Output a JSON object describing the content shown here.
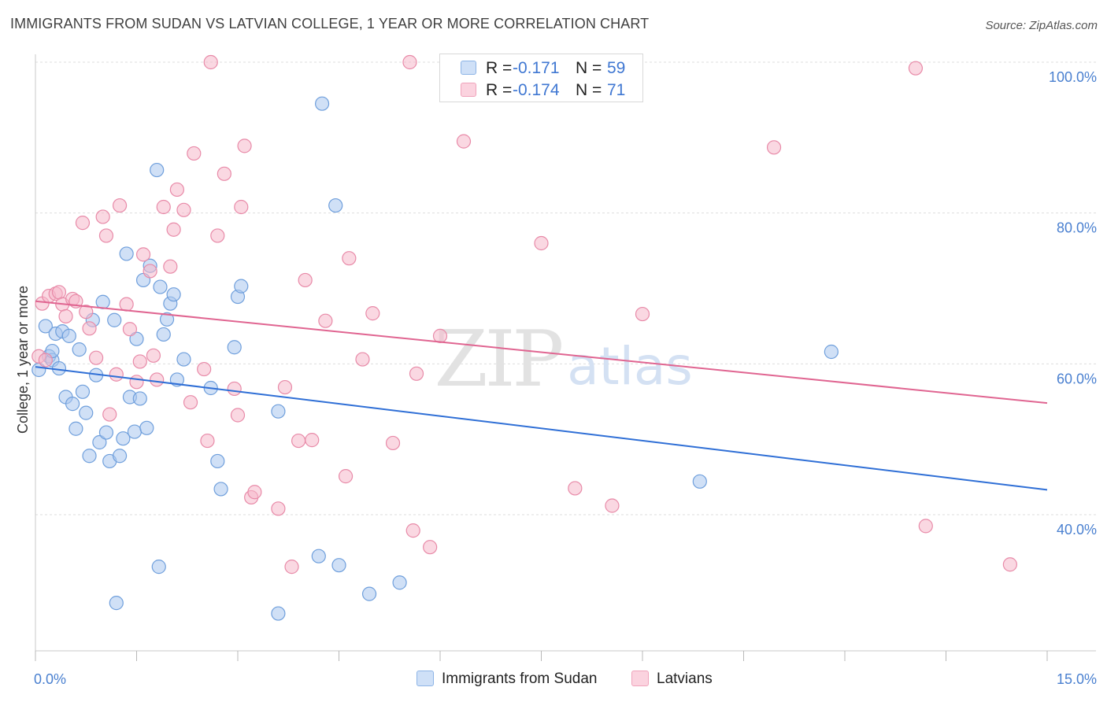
{
  "title": "IMMIGRANTS FROM SUDAN VS LATVIAN COLLEGE, 1 YEAR OR MORE CORRELATION CHART",
  "source": "Source: ZipAtlas.com",
  "watermark": {
    "zip": "ZIP",
    "atlas": "atlas"
  },
  "legend_top": {
    "rows": [
      {
        "r_label": "R =",
        "r_value": "-0.171",
        "n_label": "N =",
        "n_value": "59",
        "color": "#a9c7ee"
      },
      {
        "r_label": "R =",
        "r_value": "-0.174",
        "n_label": "N =",
        "n_value": "71",
        "color": "#f5b8cb"
      }
    ]
  },
  "legend_bottom": [
    {
      "label": "Immigrants from Sudan",
      "color": "#a9c7ee"
    },
    {
      "label": "Latvians",
      "color": "#f5b8cb"
    }
  ],
  "colors": {
    "blue_fill": "#a9c7ee",
    "blue_stroke": "#6f9fdc",
    "blue_line": "#2f6fd6",
    "pink_fill": "#f5b8cb",
    "pink_stroke": "#e88aa8",
    "pink_line": "#e06591",
    "tick_label": "#4a80d0",
    "grid": "#dddddd"
  },
  "chart_data": {
    "type": "scatter",
    "title": "IMMIGRANTS FROM SUDAN VS LATVIAN COLLEGE, 1 YEAR OR MORE CORRELATION CHART",
    "xlabel": "",
    "ylabel": "College, 1 year or more",
    "xlim": [
      0,
      15
    ],
    "ylim": [
      20,
      102
    ],
    "x_tick_labels": [
      "0.0%",
      "15.0%"
    ],
    "y_ticks": [
      40,
      60,
      80,
      100
    ],
    "y_tick_labels": [
      "40.0%",
      "60.0%",
      "80.0%",
      "100.0%"
    ],
    "grid": true,
    "legend_position": "bottom",
    "series": [
      {
        "name": "Immigrants from Sudan",
        "R": -0.171,
        "N": 59,
        "trend": {
          "x": [
            0,
            15
          ],
          "y": [
            59.6,
            43.3
          ]
        },
        "points": [
          [
            0.05,
            59.2
          ],
          [
            0.15,
            65.0
          ],
          [
            0.2,
            61.0
          ],
          [
            0.25,
            60.5
          ],
          [
            0.25,
            61.7
          ],
          [
            0.3,
            64.0
          ],
          [
            0.35,
            59.4
          ],
          [
            0.4,
            64.3
          ],
          [
            0.45,
            55.6
          ],
          [
            0.5,
            63.7
          ],
          [
            0.55,
            54.7
          ],
          [
            0.6,
            51.4
          ],
          [
            0.65,
            61.9
          ],
          [
            0.7,
            56.3
          ],
          [
            0.75,
            53.5
          ],
          [
            0.8,
            47.8
          ],
          [
            0.85,
            65.8
          ],
          [
            0.9,
            58.5
          ],
          [
            0.95,
            49.6
          ],
          [
            1.0,
            68.2
          ],
          [
            1.05,
            50.9
          ],
          [
            1.1,
            47.1
          ],
          [
            1.17,
            65.8
          ],
          [
            1.2,
            28.3
          ],
          [
            1.25,
            47.8
          ],
          [
            1.3,
            50.1
          ],
          [
            1.35,
            74.6
          ],
          [
            1.4,
            55.6
          ],
          [
            1.47,
            51.0
          ],
          [
            1.5,
            63.3
          ],
          [
            1.55,
            55.4
          ],
          [
            1.6,
            71.1
          ],
          [
            1.65,
            51.5
          ],
          [
            1.7,
            73.0
          ],
          [
            1.8,
            85.7
          ],
          [
            1.83,
            33.1
          ],
          [
            1.85,
            70.2
          ],
          [
            1.9,
            63.9
          ],
          [
            1.95,
            65.9
          ],
          [
            2.0,
            68.0
          ],
          [
            2.05,
            69.2
          ],
          [
            2.1,
            57.9
          ],
          [
            2.2,
            60.6
          ],
          [
            2.6,
            56.8
          ],
          [
            2.7,
            47.1
          ],
          [
            2.75,
            43.4
          ],
          [
            2.95,
            62.2
          ],
          [
            3.0,
            68.9
          ],
          [
            3.05,
            70.3
          ],
          [
            3.6,
            26.9
          ],
          [
            3.6,
            53.7
          ],
          [
            4.2,
            34.5
          ],
          [
            4.25,
            94.5
          ],
          [
            4.45,
            81.0
          ],
          [
            4.5,
            33.3
          ],
          [
            4.95,
            29.5
          ],
          [
            5.4,
            31.0
          ],
          [
            9.85,
            44.4
          ],
          [
            11.8,
            61.6
          ]
        ]
      },
      {
        "name": "Latvians",
        "R": -0.174,
        "N": 71,
        "trend": {
          "x": [
            0,
            15
          ],
          "y": [
            68.3,
            54.8
          ]
        },
        "points": [
          [
            0.05,
            61.0
          ],
          [
            0.1,
            68.0
          ],
          [
            0.15,
            60.5
          ],
          [
            0.2,
            69.0
          ],
          [
            0.3,
            69.3
          ],
          [
            0.35,
            69.5
          ],
          [
            0.4,
            67.9
          ],
          [
            0.45,
            66.3
          ],
          [
            0.55,
            68.6
          ],
          [
            0.6,
            68.3
          ],
          [
            0.7,
            78.7
          ],
          [
            0.75,
            66.9
          ],
          [
            0.8,
            64.7
          ],
          [
            0.9,
            60.8
          ],
          [
            1.0,
            79.5
          ],
          [
            1.05,
            77.0
          ],
          [
            1.1,
            53.3
          ],
          [
            1.2,
            58.6
          ],
          [
            1.25,
            81.0
          ],
          [
            1.35,
            67.9
          ],
          [
            1.4,
            64.6
          ],
          [
            1.5,
            57.6
          ],
          [
            1.55,
            60.3
          ],
          [
            1.6,
            74.5
          ],
          [
            1.7,
            72.3
          ],
          [
            1.75,
            61.1
          ],
          [
            1.8,
            57.9
          ],
          [
            1.9,
            80.8
          ],
          [
            2.0,
            72.9
          ],
          [
            2.05,
            77.8
          ],
          [
            2.1,
            83.1
          ],
          [
            2.2,
            80.4
          ],
          [
            2.3,
            54.9
          ],
          [
            2.35,
            87.9
          ],
          [
            2.5,
            59.3
          ],
          [
            2.55,
            49.8
          ],
          [
            2.6,
            100.0
          ],
          [
            2.7,
            77.0
          ],
          [
            2.8,
            85.2
          ],
          [
            2.95,
            56.7
          ],
          [
            3.0,
            53.2
          ],
          [
            3.05,
            80.8
          ],
          [
            3.1,
            88.9
          ],
          [
            3.2,
            42.3
          ],
          [
            3.25,
            43.0
          ],
          [
            3.6,
            40.8
          ],
          [
            3.7,
            56.9
          ],
          [
            3.8,
            33.1
          ],
          [
            3.9,
            49.8
          ],
          [
            4.0,
            71.1
          ],
          [
            4.1,
            49.9
          ],
          [
            4.3,
            65.7
          ],
          [
            4.6,
            45.1
          ],
          [
            4.65,
            74.0
          ],
          [
            4.85,
            60.6
          ],
          [
            5.0,
            66.7
          ],
          [
            5.3,
            49.5
          ],
          [
            5.55,
            100.0
          ],
          [
            5.6,
            37.9
          ],
          [
            5.65,
            58.7
          ],
          [
            5.85,
            35.7
          ],
          [
            6.0,
            63.7
          ],
          [
            6.35,
            89.5
          ],
          [
            7.5,
            76.0
          ],
          [
            8.0,
            43.5
          ],
          [
            8.55,
            41.2
          ],
          [
            9.0,
            66.6
          ],
          [
            10.95,
            88.7
          ],
          [
            13.05,
            99.2
          ],
          [
            13.2,
            38.5
          ],
          [
            14.45,
            33.4
          ]
        ]
      }
    ]
  }
}
